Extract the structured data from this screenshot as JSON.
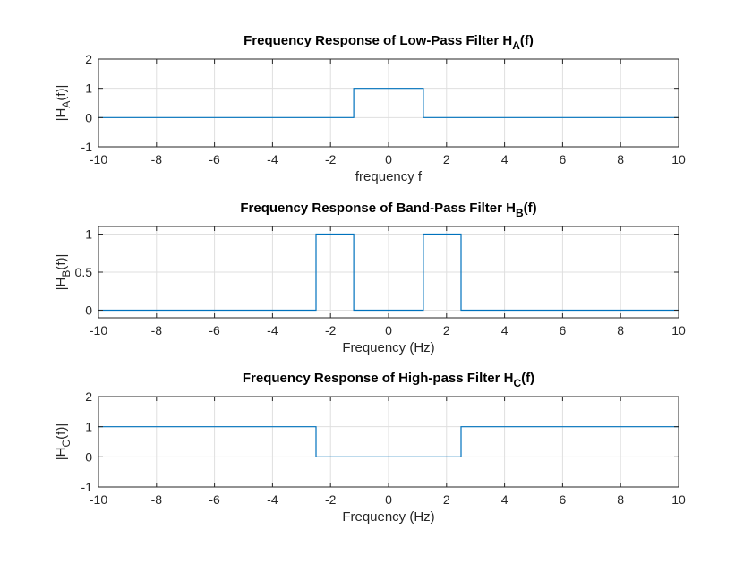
{
  "colors": {
    "line": "#0072BD",
    "axis": "#262626",
    "grid": "#dfdfdf"
  },
  "chart_data": [
    {
      "type": "line",
      "title": {
        "main": "Frequency Response of Low-Pass Filter H",
        "sub": "A",
        "tail": "(f)"
      },
      "xlabel": "frequency f",
      "ylabel": {
        "pre": "|H",
        "sub": "A",
        "post": "(f)|"
      },
      "xlim": [
        -10,
        10
      ],
      "ylim": [
        -1,
        2
      ],
      "xticks": [
        -10,
        -8,
        -6,
        -4,
        -2,
        0,
        2,
        4,
        6,
        8,
        10
      ],
      "yticks": [
        -1,
        0,
        1,
        2
      ],
      "ytick_labels": [
        "-1",
        "0",
        "1",
        "2"
      ],
      "grid": true,
      "series": [
        {
          "x": [
            -10,
            -1.2,
            -1.2,
            1.2,
            1.2,
            10
          ],
          "y": [
            0,
            0,
            1,
            1,
            0,
            0
          ]
        }
      ]
    },
    {
      "type": "line",
      "title": {
        "main": "Frequency Response of Band-Pass Filter H",
        "sub": "B",
        "tail": "(f)"
      },
      "xlabel": "Frequency (Hz)",
      "ylabel": {
        "pre": "|H",
        "sub": "B",
        "post": "(f)|"
      },
      "xlim": [
        -10,
        10
      ],
      "ylim": [
        -0.1,
        1.1
      ],
      "xticks": [
        -10,
        -8,
        -6,
        -4,
        -2,
        0,
        2,
        4,
        6,
        8,
        10
      ],
      "yticks": [
        0,
        0.5,
        1
      ],
      "ytick_labels": [
        "0",
        "0.5",
        "1"
      ],
      "grid": true,
      "series": [
        {
          "x": [
            -10,
            -2.5,
            -2.5,
            -1.2,
            -1.2,
            1.2,
            1.2,
            2.5,
            2.5,
            10
          ],
          "y": [
            0,
            0,
            1,
            1,
            0,
            0,
            1,
            1,
            0,
            0
          ]
        }
      ]
    },
    {
      "type": "line",
      "title": {
        "main": "Frequency Response of High-pass Filter H",
        "sub": "C",
        "tail": "(f)"
      },
      "xlabel": "Frequency (Hz)",
      "ylabel": {
        "pre": "|H",
        "sub": "C",
        "post": "(f)|"
      },
      "xlim": [
        -10,
        10
      ],
      "ylim": [
        -1,
        2
      ],
      "xticks": [
        -10,
        -8,
        -6,
        -4,
        -2,
        0,
        2,
        4,
        6,
        8,
        10
      ],
      "yticks": [
        -1,
        0,
        1,
        2
      ],
      "ytick_labels": [
        "-1",
        "0",
        "1",
        "2"
      ],
      "grid": true,
      "series": [
        {
          "x": [
            -10,
            -2.5,
            -2.5,
            2.5,
            2.5,
            10
          ],
          "y": [
            1,
            1,
            0,
            0,
            1,
            1
          ]
        }
      ]
    }
  ]
}
